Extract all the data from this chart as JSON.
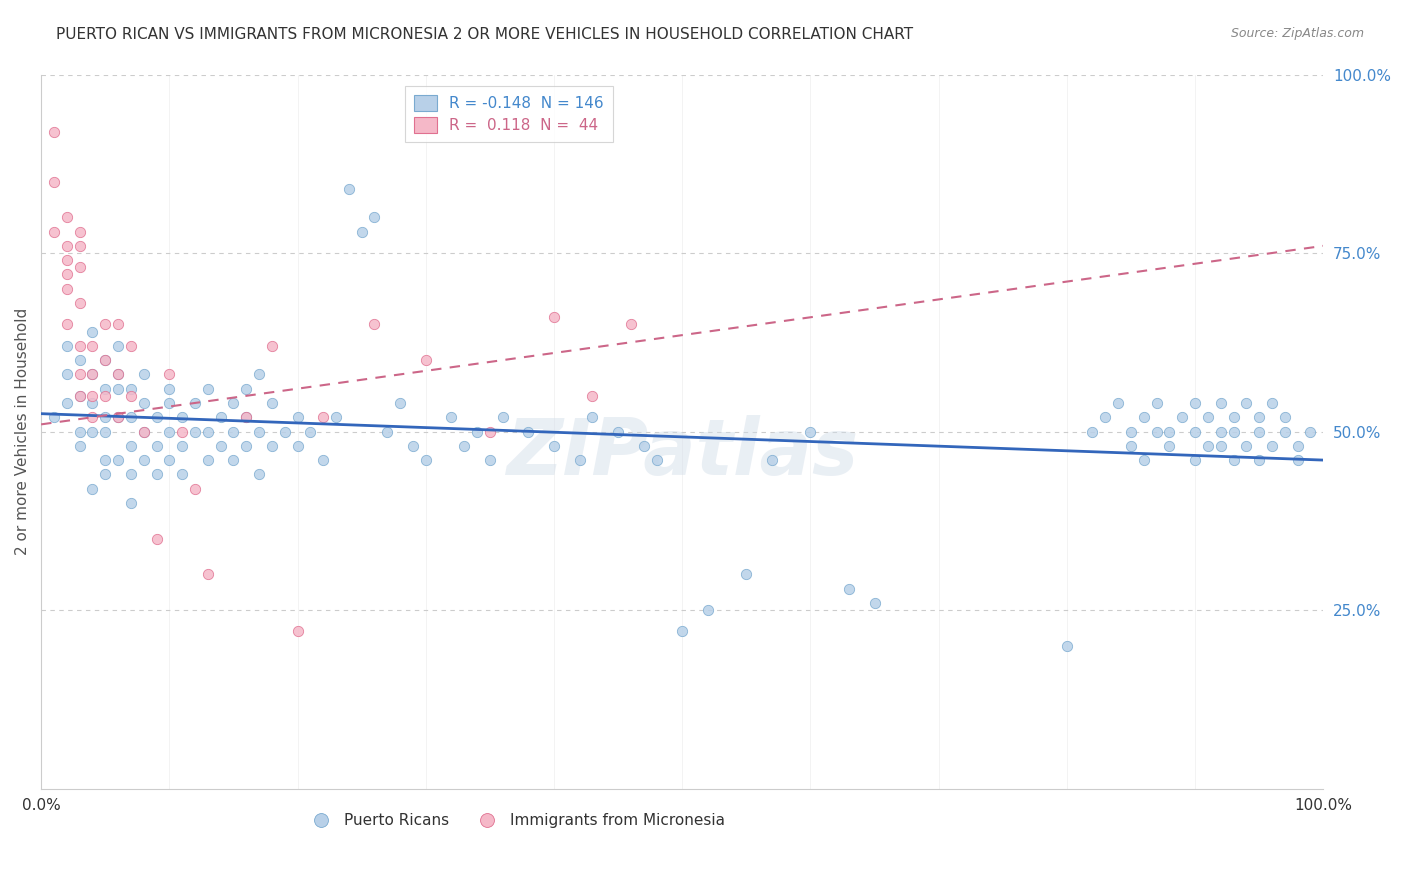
{
  "title": "PUERTO RICAN VS IMMIGRANTS FROM MICRONESIA 2 OR MORE VEHICLES IN HOUSEHOLD CORRELATION CHART",
  "source": "Source: ZipAtlas.com",
  "ylabel": "2 or more Vehicles in Household",
  "xlim": [
    0,
    1.0
  ],
  "ylim": [
    0,
    1.0
  ],
  "watermark": "ZIPatlas",
  "blue_scatter": {
    "color": "#b8d0e8",
    "edge_color": "#7aaad0",
    "x": [
      0.01,
      0.02,
      0.02,
      0.02,
      0.03,
      0.03,
      0.03,
      0.03,
      0.04,
      0.04,
      0.04,
      0.04,
      0.04,
      0.05,
      0.05,
      0.05,
      0.05,
      0.05,
      0.05,
      0.06,
      0.06,
      0.06,
      0.06,
      0.06,
      0.07,
      0.07,
      0.07,
      0.07,
      0.07,
      0.08,
      0.08,
      0.08,
      0.08,
      0.09,
      0.09,
      0.09,
      0.1,
      0.1,
      0.1,
      0.1,
      0.11,
      0.11,
      0.11,
      0.12,
      0.12,
      0.13,
      0.13,
      0.13,
      0.14,
      0.14,
      0.15,
      0.15,
      0.15,
      0.16,
      0.16,
      0.16,
      0.17,
      0.17,
      0.17,
      0.18,
      0.18,
      0.19,
      0.2,
      0.2,
      0.21,
      0.22,
      0.23,
      0.24,
      0.25,
      0.26,
      0.27,
      0.28,
      0.29,
      0.3,
      0.32,
      0.33,
      0.34,
      0.35,
      0.36,
      0.38,
      0.4,
      0.42,
      0.43,
      0.45,
      0.47,
      0.48,
      0.5,
      0.52,
      0.55,
      0.57,
      0.6,
      0.63,
      0.65,
      0.8,
      0.82,
      0.83,
      0.84,
      0.85,
      0.85,
      0.86,
      0.86,
      0.87,
      0.87,
      0.88,
      0.88,
      0.89,
      0.9,
      0.9,
      0.9,
      0.91,
      0.91,
      0.92,
      0.92,
      0.92,
      0.93,
      0.93,
      0.93,
      0.94,
      0.94,
      0.95,
      0.95,
      0.95,
      0.96,
      0.96,
      0.97,
      0.97,
      0.98,
      0.98,
      0.99
    ],
    "y": [
      0.52,
      0.54,
      0.58,
      0.62,
      0.5,
      0.55,
      0.6,
      0.48,
      0.5,
      0.54,
      0.58,
      0.42,
      0.64,
      0.46,
      0.52,
      0.56,
      0.6,
      0.44,
      0.5,
      0.52,
      0.46,
      0.58,
      0.56,
      0.62,
      0.48,
      0.44,
      0.52,
      0.56,
      0.4,
      0.5,
      0.54,
      0.46,
      0.58,
      0.48,
      0.52,
      0.44,
      0.5,
      0.54,
      0.46,
      0.56,
      0.48,
      0.52,
      0.44,
      0.5,
      0.54,
      0.46,
      0.5,
      0.56,
      0.52,
      0.48,
      0.5,
      0.46,
      0.54,
      0.48,
      0.52,
      0.56,
      0.44,
      0.5,
      0.58,
      0.48,
      0.54,
      0.5,
      0.52,
      0.48,
      0.5,
      0.46,
      0.52,
      0.84,
      0.78,
      0.8,
      0.5,
      0.54,
      0.48,
      0.46,
      0.52,
      0.48,
      0.5,
      0.46,
      0.52,
      0.5,
      0.48,
      0.46,
      0.52,
      0.5,
      0.48,
      0.46,
      0.22,
      0.25,
      0.3,
      0.46,
      0.5,
      0.28,
      0.26,
      0.2,
      0.5,
      0.52,
      0.54,
      0.5,
      0.48,
      0.52,
      0.46,
      0.5,
      0.54,
      0.5,
      0.48,
      0.52,
      0.5,
      0.54,
      0.46,
      0.52,
      0.48,
      0.5,
      0.54,
      0.48,
      0.52,
      0.46,
      0.5,
      0.54,
      0.48,
      0.52,
      0.46,
      0.5,
      0.54,
      0.48,
      0.5,
      0.52,
      0.48,
      0.46,
      0.5
    ]
  },
  "pink_scatter": {
    "color": "#f5b8c8",
    "edge_color": "#e07090",
    "x": [
      0.01,
      0.01,
      0.01,
      0.02,
      0.02,
      0.02,
      0.02,
      0.02,
      0.02,
      0.03,
      0.03,
      0.03,
      0.03,
      0.03,
      0.03,
      0.03,
      0.04,
      0.04,
      0.04,
      0.04,
      0.05,
      0.05,
      0.05,
      0.06,
      0.06,
      0.06,
      0.07,
      0.07,
      0.08,
      0.09,
      0.1,
      0.11,
      0.12,
      0.13,
      0.16,
      0.18,
      0.2,
      0.22,
      0.26,
      0.3,
      0.35,
      0.4,
      0.43,
      0.46
    ],
    "y": [
      0.92,
      0.85,
      0.78,
      0.8,
      0.76,
      0.74,
      0.72,
      0.7,
      0.65,
      0.78,
      0.76,
      0.73,
      0.68,
      0.62,
      0.58,
      0.55,
      0.62,
      0.58,
      0.55,
      0.52,
      0.65,
      0.6,
      0.55,
      0.65,
      0.58,
      0.52,
      0.62,
      0.55,
      0.5,
      0.35,
      0.58,
      0.5,
      0.42,
      0.3,
      0.52,
      0.62,
      0.22,
      0.52,
      0.65,
      0.6,
      0.5,
      0.66,
      0.55,
      0.65
    ]
  },
  "blue_line": {
    "color": "#3366bb",
    "x_start": 0.0,
    "y_start": 0.525,
    "x_end": 1.0,
    "y_end": 0.46
  },
  "pink_line": {
    "color": "#cc6688",
    "x_start": 0.0,
    "y_start": 0.51,
    "x_end": 1.0,
    "y_end": 0.76
  },
  "grid_color": "#cccccc",
  "background_color": "#ffffff",
  "title_color": "#333333",
  "right_axis_color": "#4488cc",
  "watermark_color": "#d0dce8",
  "watermark_fontsize": 56
}
